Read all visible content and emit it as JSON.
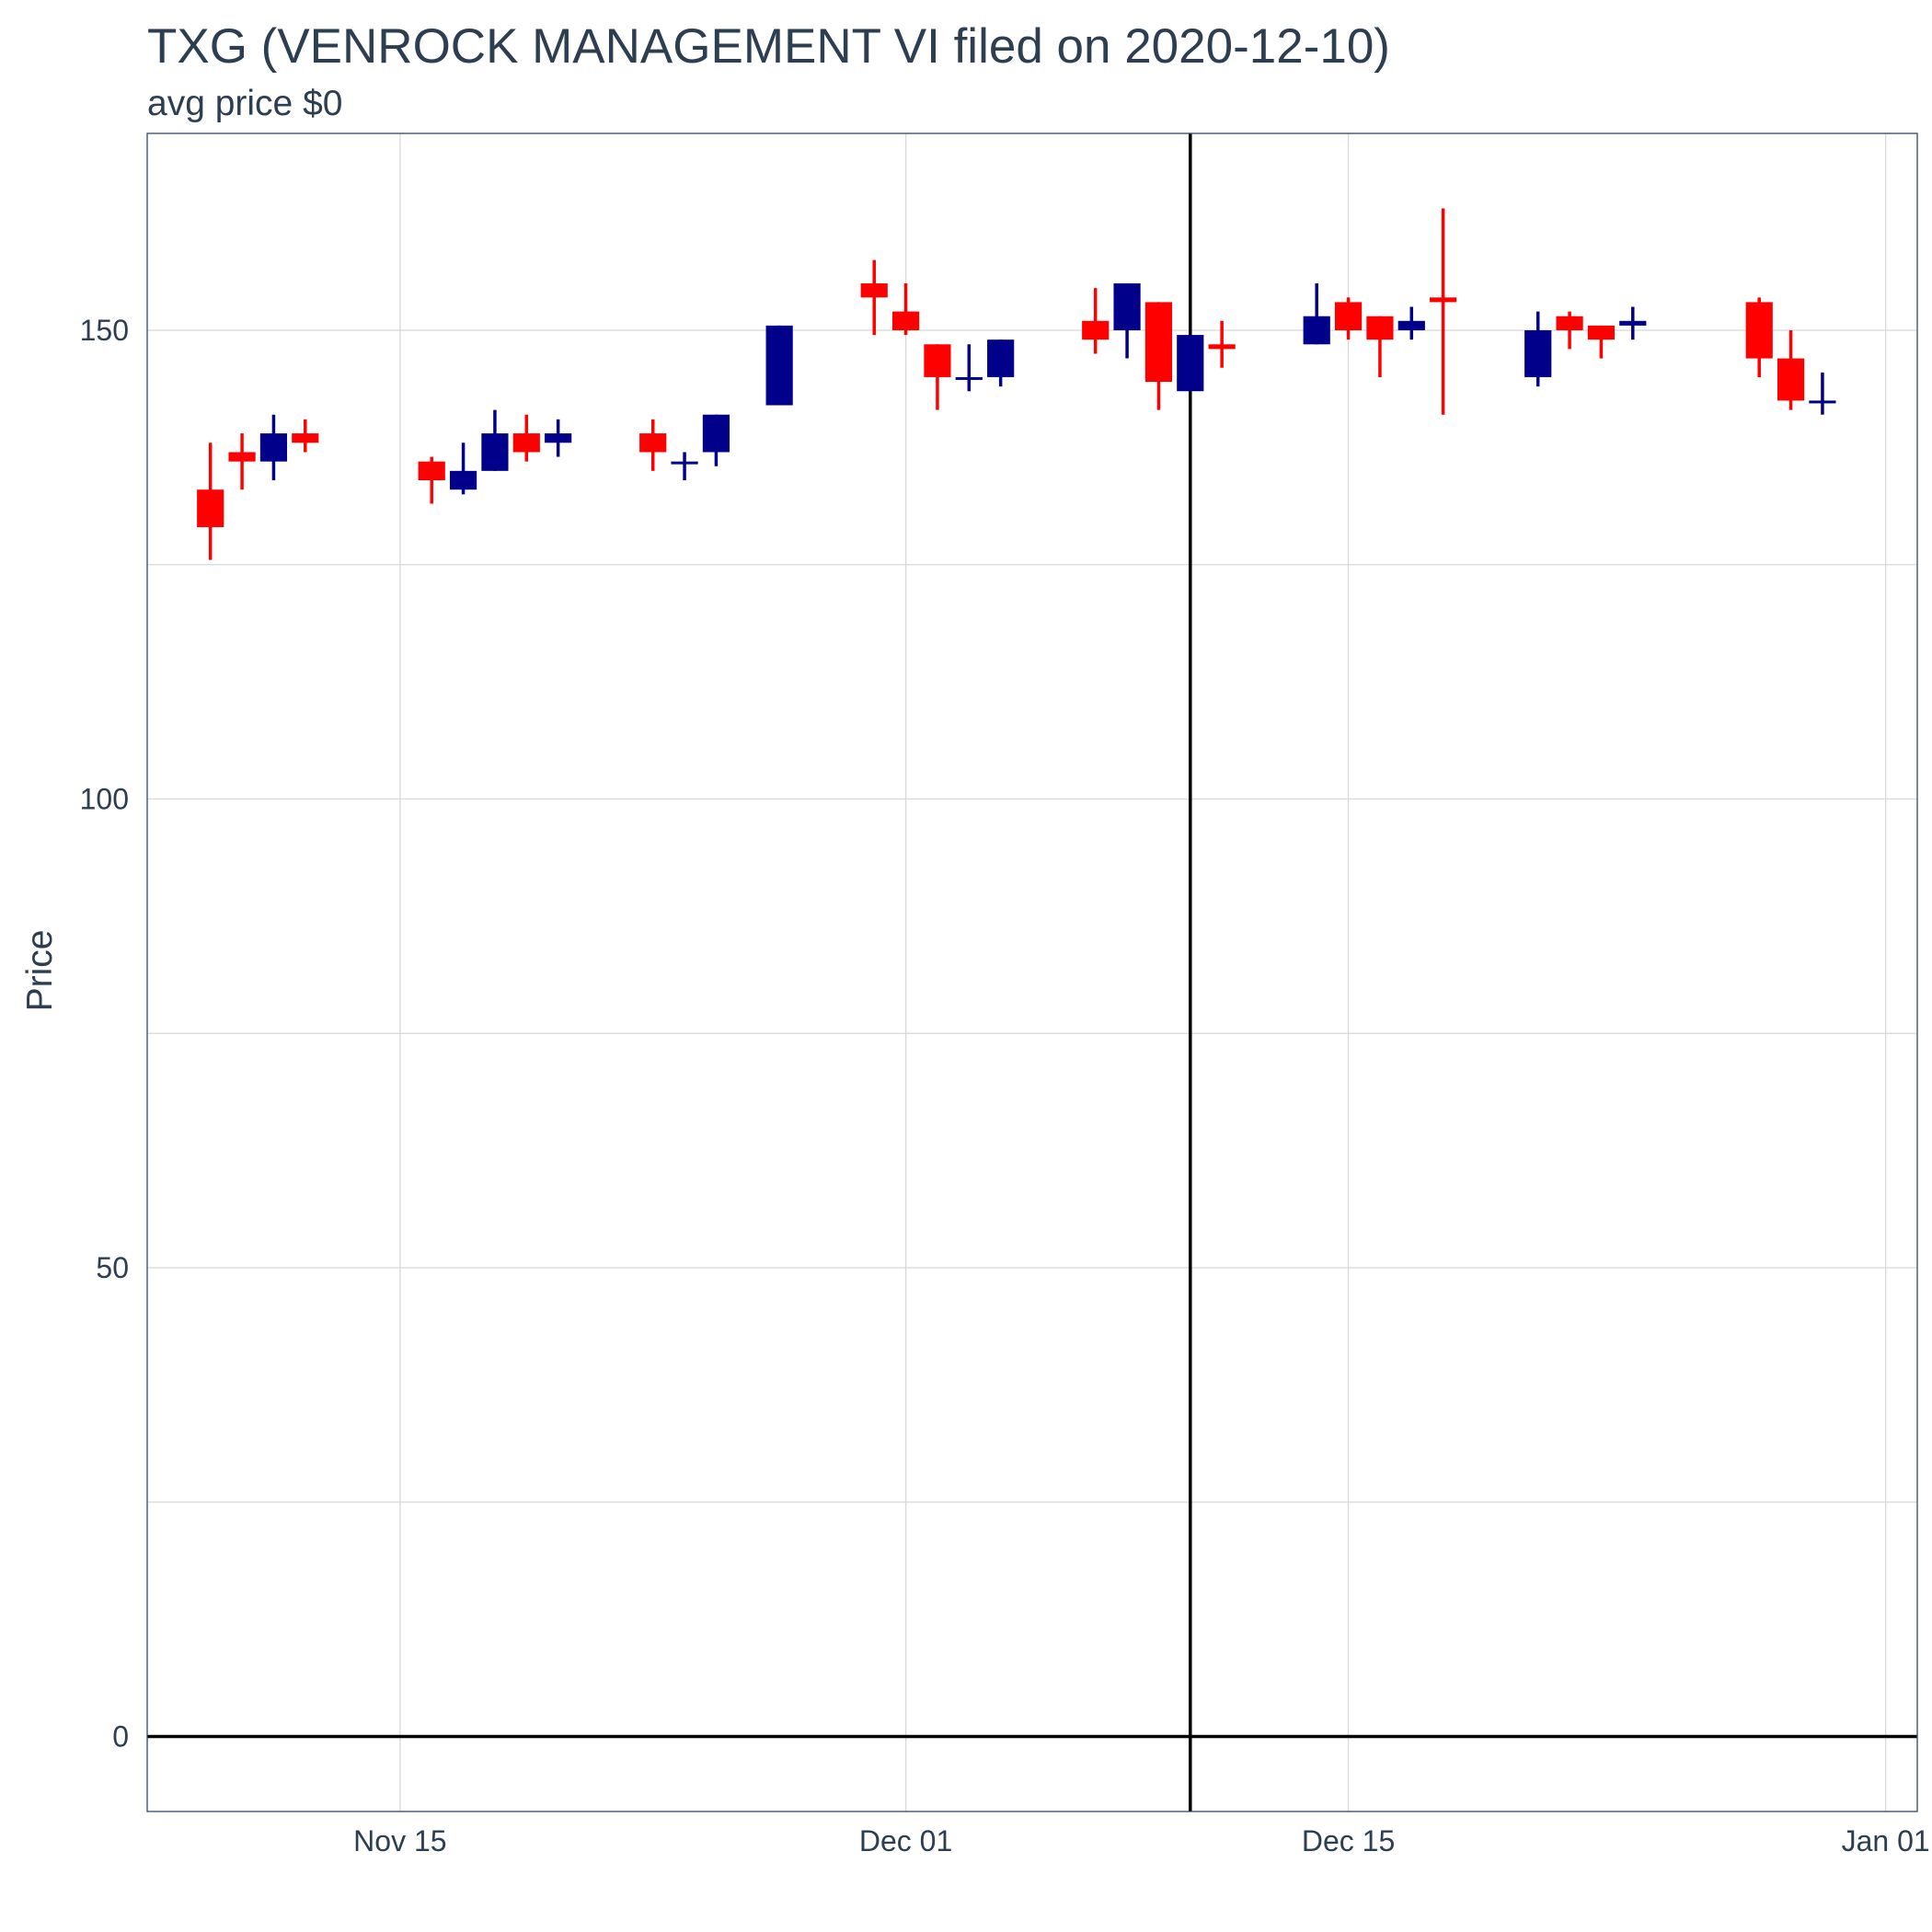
{
  "chart_data": {
    "type": "candlestick",
    "title": "TXG (VENROCK MANAGEMENT VI filed on 2020-12-10)",
    "subtitle": "avg price $0",
    "ylabel": "Price",
    "xlabel": "",
    "xlim": [
      "2020-11-07",
      "2021-01-02"
    ],
    "ylim": [
      -8,
      171
    ],
    "yticks": [
      0,
      50,
      100,
      150
    ],
    "xticks": [
      {
        "date": "2020-11-15",
        "label": "Nov 15"
      },
      {
        "date": "2020-12-01",
        "label": "Dec 01"
      },
      {
        "date": "2020-12-15",
        "label": "Dec 15"
      },
      {
        "date": "2021-01-01",
        "label": "Jan 01"
      }
    ],
    "grid": true,
    "reference_lines": {
      "horizontal": 0,
      "vertical": "2020-12-10"
    },
    "colors": {
      "up": "#00008b",
      "down": "#ff0000",
      "reference": "#000000",
      "grid": "#d5d8dc",
      "text": "#2c3e50"
    },
    "candles": [
      {
        "date": "2020-11-09",
        "open": 133.0,
        "high": 138.0,
        "low": 125.5,
        "close": 129.0
      },
      {
        "date": "2020-11-10",
        "open": 137.0,
        "high": 139.0,
        "low": 133.0,
        "close": 136.0
      },
      {
        "date": "2020-11-11",
        "open": 136.0,
        "high": 141.0,
        "low": 134.0,
        "close": 139.0
      },
      {
        "date": "2020-11-12",
        "open": 139.0,
        "high": 140.5,
        "low": 137.0,
        "close": 138.0
      },
      {
        "date": "2020-11-16",
        "open": 136.0,
        "high": 136.5,
        "low": 131.5,
        "close": 134.0
      },
      {
        "date": "2020-11-17",
        "open": 133.0,
        "high": 138.0,
        "low": 132.5,
        "close": 135.0
      },
      {
        "date": "2020-11-18",
        "open": 135.0,
        "high": 141.5,
        "low": 135.0,
        "close": 139.0
      },
      {
        "date": "2020-11-19",
        "open": 139.0,
        "high": 141.0,
        "low": 136.0,
        "close": 137.0
      },
      {
        "date": "2020-11-20",
        "open": 138.0,
        "high": 140.5,
        "low": 136.5,
        "close": 139.0
      },
      {
        "date": "2020-11-23",
        "open": 139.0,
        "high": 140.5,
        "low": 135.0,
        "close": 137.0
      },
      {
        "date": "2020-11-24",
        "open": 136.0,
        "high": 137.0,
        "low": 134.0,
        "close": 136.0
      },
      {
        "date": "2020-11-25",
        "open": 137.0,
        "high": 141.0,
        "low": 135.5,
        "close": 141.0
      },
      {
        "date": "2020-11-27",
        "open": 142.0,
        "high": 150.5,
        "low": 142.0,
        "close": 150.5
      },
      {
        "date": "2020-11-30",
        "open": 155.0,
        "high": 157.5,
        "low": 149.5,
        "close": 153.5
      },
      {
        "date": "2020-12-01",
        "open": 152.0,
        "high": 155.0,
        "low": 149.5,
        "close": 150.0
      },
      {
        "date": "2020-12-02",
        "open": 148.5,
        "high": 148.5,
        "low": 141.5,
        "close": 145.0
      },
      {
        "date": "2020-12-03",
        "open": 145.0,
        "high": 148.5,
        "low": 143.5,
        "close": 145.0
      },
      {
        "date": "2020-12-04",
        "open": 145.0,
        "high": 149.0,
        "low": 144.0,
        "close": 149.0
      },
      {
        "date": "2020-12-07",
        "open": 151.0,
        "high": 154.5,
        "low": 147.5,
        "close": 149.0
      },
      {
        "date": "2020-12-08",
        "open": 150.0,
        "high": 155.0,
        "low": 147.0,
        "close": 155.0
      },
      {
        "date": "2020-12-09",
        "open": 153.0,
        "high": 153.0,
        "low": 141.5,
        "close": 144.5
      },
      {
        "date": "2020-12-10",
        "open": 143.5,
        "high": 149.5,
        "low": 143.5,
        "close": 149.5
      },
      {
        "date": "2020-12-11",
        "open": 148.5,
        "high": 151.0,
        "low": 146.0,
        "close": 148.0
      },
      {
        "date": "2020-12-14",
        "open": 148.5,
        "high": 155.0,
        "low": 148.5,
        "close": 151.5
      },
      {
        "date": "2020-12-15",
        "open": 153.0,
        "high": 153.5,
        "low": 149.0,
        "close": 150.0
      },
      {
        "date": "2020-12-16",
        "open": 151.5,
        "high": 151.5,
        "low": 145.0,
        "close": 149.0
      },
      {
        "date": "2020-12-17",
        "open": 150.0,
        "high": 152.5,
        "low": 149.0,
        "close": 151.0
      },
      {
        "date": "2020-12-18",
        "open": 153.5,
        "high": 163.0,
        "low": 141.0,
        "close": 153.0
      },
      {
        "date": "2020-12-21",
        "open": 145.0,
        "high": 152.0,
        "low": 144.0,
        "close": 150.0
      },
      {
        "date": "2020-12-22",
        "open": 151.5,
        "high": 152.0,
        "low": 148.0,
        "close": 150.0
      },
      {
        "date": "2020-12-23",
        "open": 150.5,
        "high": 150.5,
        "low": 147.0,
        "close": 149.0
      },
      {
        "date": "2020-12-24",
        "open": 150.5,
        "high": 152.5,
        "low": 149.0,
        "close": 151.0
      },
      {
        "date": "2020-12-28",
        "open": 153.0,
        "high": 153.5,
        "low": 145.0,
        "close": 147.0
      },
      {
        "date": "2020-12-29",
        "open": 147.0,
        "high": 150.0,
        "low": 141.5,
        "close": 142.5
      },
      {
        "date": "2020-12-30",
        "open": 142.5,
        "high": 145.5,
        "low": 141.0,
        "close": 142.5
      }
    ]
  }
}
